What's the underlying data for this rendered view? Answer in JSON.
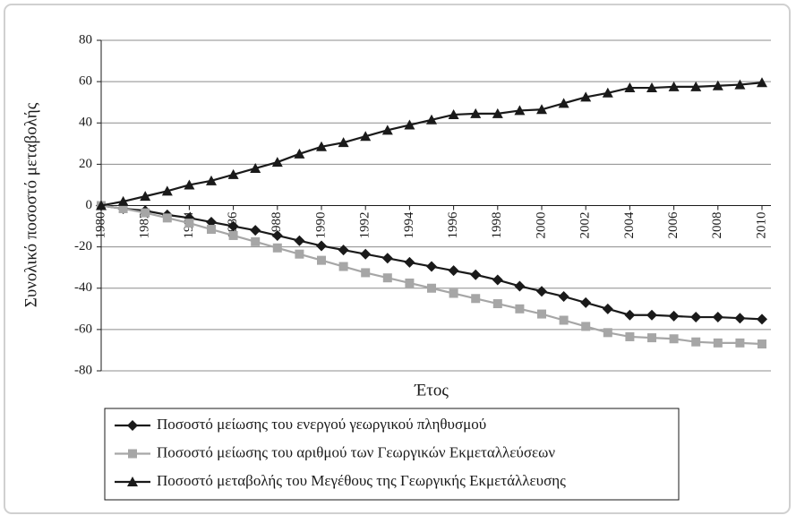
{
  "chart_data": {
    "type": "line",
    "x_label": "Έτος",
    "y_label": "Συνολικό ποσοστό μεταβολής",
    "x": [
      1980,
      1981,
      1982,
      1983,
      1984,
      1985,
      1986,
      1987,
      1988,
      1989,
      1990,
      1991,
      1992,
      1993,
      1994,
      1995,
      1996,
      1997,
      1998,
      1999,
      2000,
      2001,
      2002,
      2003,
      2004,
      2005,
      2006,
      2007,
      2008,
      2009,
      2010
    ],
    "xlim": [
      1980,
      2010
    ],
    "xticks": [
      1980,
      1982,
      1984,
      1986,
      1988,
      1990,
      1992,
      1994,
      1996,
      1998,
      2000,
      2002,
      2004,
      2006,
      2008,
      2010
    ],
    "ylim": [
      -80,
      80
    ],
    "yticks": [
      -80,
      -60,
      -40,
      -20,
      0,
      20,
      40,
      60,
      80
    ],
    "grid": true,
    "legend_position": "bottom",
    "series": [
      {
        "name": "Ποσοστό μείωσης του ενεργού γεωργικού πληθυσμού",
        "color": "#1a1a1a",
        "marker": "diamond",
        "values": [
          0,
          -1.5,
          -2.5,
          -4.5,
          -6,
          -8,
          -10,
          -12,
          -14.5,
          -17,
          -19.5,
          -21.5,
          -23.5,
          -25.5,
          -27.5,
          -29.5,
          -31.5,
          -33.5,
          -36,
          -39,
          -41.5,
          -44,
          -47,
          -50,
          -53,
          -53,
          -53.5,
          -54,
          -54,
          -54.5,
          -55
        ]
      },
      {
        "name": "Ποσοστό μείωσης του αριθμού των Γεωργικών Εκμεταλλεύσεων",
        "color": "#a6a6a6",
        "marker": "square",
        "values": [
          0,
          -1.5,
          -3.5,
          -6,
          -8.5,
          -11.5,
          -14.5,
          -17.5,
          -20.5,
          -23.5,
          -26.5,
          -29.5,
          -32.5,
          -35,
          -37.5,
          -40,
          -42.5,
          -45,
          -47.5,
          -50,
          -52.5,
          -55.5,
          -58.5,
          -61.5,
          -63.5,
          -64,
          -64.5,
          -66,
          -66.5,
          -66.5,
          -67
        ]
      },
      {
        "name": "Ποσοστό μεταβολής του Μεγέθους της Γεωργικής Εκμετάλλευσης",
        "color": "#1a1a1a",
        "marker": "triangle",
        "values": [
          0,
          2,
          4.5,
          7,
          10,
          12,
          15,
          18,
          21,
          25,
          28.5,
          30.5,
          33.5,
          36.5,
          39,
          41.5,
          44,
          44.5,
          44.5,
          46,
          46.5,
          49.5,
          52.5,
          54.5,
          57,
          57,
          57.5,
          57.5,
          58,
          58.5,
          59.5
        ]
      }
    ]
  }
}
